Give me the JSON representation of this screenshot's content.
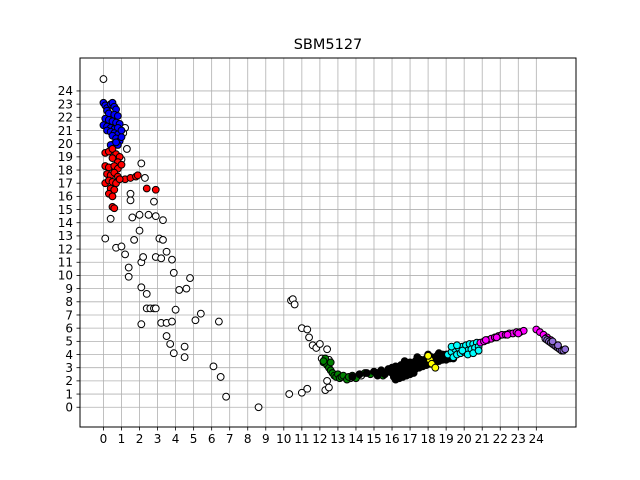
{
  "chart_data": {
    "type": "scatter",
    "title": "SBM5127",
    "xlabel": "",
    "ylabel": "",
    "xlim": [
      -1.3,
      26.2
    ],
    "ylim": [
      -1.5,
      26.5
    ],
    "xticks": [
      0,
      1,
      2,
      3,
      4,
      5,
      6,
      7,
      8,
      9,
      10,
      11,
      12,
      13,
      14,
      15,
      16,
      17,
      18,
      19,
      20,
      21,
      22,
      23,
      24
    ],
    "yticks": [
      0,
      1,
      2,
      3,
      4,
      5,
      6,
      7,
      8,
      9,
      10,
      11,
      12,
      13,
      14,
      15,
      16,
      17,
      18,
      19,
      20,
      21,
      22,
      23,
      24
    ],
    "grid": true,
    "marker_edge_color": "#000000",
    "series": [
      {
        "color": "#ffffff",
        "points": [
          [
            0,
            24.9
          ],
          [
            0.1,
            12.8
          ],
          [
            0.4,
            14.3
          ],
          [
            0.7,
            12.1
          ],
          [
            1.0,
            12.2
          ],
          [
            1.2,
            11.6
          ],
          [
            1.4,
            10.6
          ],
          [
            1.4,
            9.9
          ],
          [
            1.2,
            21.2
          ],
          [
            1.1,
            20.8
          ],
          [
            1.3,
            19.6
          ],
          [
            1.0,
            18.8
          ],
          [
            2.1,
            18.5
          ],
          [
            2.3,
            17.4
          ],
          [
            1.5,
            16.2
          ],
          [
            1.5,
            15.7
          ],
          [
            2.8,
            15.6
          ],
          [
            1.6,
            14.4
          ],
          [
            2.0,
            14.6
          ],
          [
            2.5,
            14.6
          ],
          [
            2.9,
            14.5
          ],
          [
            3.3,
            14.2
          ],
          [
            2.0,
            13.4
          ],
          [
            1.7,
            12.7
          ],
          [
            2.1,
            11.0
          ],
          [
            2.2,
            11.4
          ],
          [
            2.9,
            11.4
          ],
          [
            3.1,
            12.8
          ],
          [
            3.3,
            12.7
          ],
          [
            3.2,
            11.3
          ],
          [
            3.5,
            11.8
          ],
          [
            3.8,
            11.2
          ],
          [
            3.9,
            10.2
          ],
          [
            2.1,
            9.1
          ],
          [
            2.4,
            8.6
          ],
          [
            4.8,
            9.8
          ],
          [
            4.2,
            8.9
          ],
          [
            4.6,
            9.0
          ],
          [
            2.4,
            7.5
          ],
          [
            2.6,
            7.5
          ],
          [
            2.8,
            7.5
          ],
          [
            2.9,
            7.5
          ],
          [
            4.0,
            7.4
          ],
          [
            2.1,
            6.3
          ],
          [
            3.2,
            6.4
          ],
          [
            3.5,
            6.4
          ],
          [
            3.8,
            6.5
          ],
          [
            5.1,
            6.6
          ],
          [
            5.4,
            7.1
          ],
          [
            6.4,
            6.5
          ],
          [
            3.5,
            5.4
          ],
          [
            3.7,
            4.8
          ],
          [
            3.9,
            4.1
          ],
          [
            4.5,
            4.6
          ],
          [
            4.5,
            3.8
          ],
          [
            6.1,
            3.1
          ],
          [
            6.5,
            2.3
          ],
          [
            6.8,
            0.8
          ],
          [
            8.6,
            0
          ],
          [
            10.4,
            8.1
          ],
          [
            10.5,
            8.2
          ],
          [
            10.6,
            7.8
          ],
          [
            11.0,
            6.0
          ],
          [
            11.3,
            5.9
          ],
          [
            11.4,
            5.3
          ],
          [
            11.6,
            4.7
          ],
          [
            11.8,
            4.5
          ],
          [
            12.0,
            4.8
          ],
          [
            12.1,
            3.7
          ],
          [
            12.4,
            4.4
          ],
          [
            12.5,
            3.6
          ],
          [
            12.3,
            1.3
          ],
          [
            12.4,
            2.0
          ],
          [
            12.5,
            1.5
          ],
          [
            10.3,
            1.0
          ],
          [
            11.0,
            1.1
          ],
          [
            11.3,
            1.4
          ],
          [
            13.7,
            2.2
          ],
          [
            14.3,
            2.4
          ]
        ]
      },
      {
        "color": "#0000ff",
        "points": [
          [
            0,
            23.1
          ],
          [
            0.1,
            22.9
          ],
          [
            0.2,
            22.7
          ],
          [
            0.4,
            23.0
          ],
          [
            0.5,
            23.1
          ],
          [
            0.6,
            22.8
          ],
          [
            0.7,
            22.6
          ],
          [
            0.2,
            22.5
          ],
          [
            0.3,
            22.3
          ],
          [
            0.6,
            22.2
          ],
          [
            0.8,
            22.1
          ],
          [
            0.1,
            21.9
          ],
          [
            0.3,
            21.8
          ],
          [
            0.5,
            21.7
          ],
          [
            0.7,
            21.6
          ],
          [
            0.9,
            21.5
          ],
          [
            0,
            21.4
          ],
          [
            0.2,
            21.3
          ],
          [
            0.4,
            21.2
          ],
          [
            0.6,
            21.1
          ],
          [
            0.8,
            21.2
          ],
          [
            0.2,
            21.0
          ],
          [
            0.4,
            20.9
          ],
          [
            0.6,
            20.8
          ],
          [
            0.8,
            20.7
          ],
          [
            0.5,
            20.6
          ],
          [
            0.7,
            20.4
          ],
          [
            0.9,
            20.2
          ],
          [
            0.6,
            20.0
          ],
          [
            0.8,
            19.9
          ],
          [
            0.4,
            19.9
          ],
          [
            1.0,
            20.5
          ],
          [
            1.0,
            21.0
          ],
          [
            0.7,
            20.1
          ]
        ]
      },
      {
        "color": "#ff0000",
        "points": [
          [
            0.1,
            19.3
          ],
          [
            0.3,
            19.4
          ],
          [
            0.5,
            19.6
          ],
          [
            0.7,
            19.2
          ],
          [
            0.9,
            19.0
          ],
          [
            0.5,
            18.9
          ],
          [
            0.8,
            18.6
          ],
          [
            0.1,
            18.3
          ],
          [
            0.3,
            18.2
          ],
          [
            0.6,
            18.3
          ],
          [
            0.8,
            18.1
          ],
          [
            1.0,
            18.4
          ],
          [
            0.2,
            17.7
          ],
          [
            0.4,
            17.6
          ],
          [
            0.6,
            17.8
          ],
          [
            0.8,
            17.5
          ],
          [
            0.1,
            17.0
          ],
          [
            0.3,
            17.2
          ],
          [
            0.5,
            17.1
          ],
          [
            0.7,
            17.0
          ],
          [
            0.4,
            16.6
          ],
          [
            0.6,
            16.5
          ],
          [
            0.3,
            16.2
          ],
          [
            0.5,
            16.0
          ],
          [
            0.5,
            15.2
          ],
          [
            0.6,
            15.1
          ],
          [
            1.2,
            17.3
          ],
          [
            1.5,
            17.4
          ],
          [
            1.8,
            17.5
          ],
          [
            1.9,
            17.6
          ],
          [
            2.4,
            16.6
          ],
          [
            2.9,
            16.5
          ],
          [
            0.9,
            17.3
          ]
        ]
      },
      {
        "color": "#008000",
        "points": [
          [
            12.2,
            3.4
          ],
          [
            12.3,
            3.7
          ],
          [
            12.4,
            3.2
          ],
          [
            12.5,
            3.0
          ],
          [
            12.6,
            2.8
          ],
          [
            12.7,
            2.6
          ],
          [
            12.8,
            2.4
          ],
          [
            12.9,
            2.3
          ],
          [
            13.0,
            2.5
          ],
          [
            13.1,
            2.2
          ],
          [
            13.2,
            2.3
          ],
          [
            13.3,
            2.4
          ],
          [
            13.5,
            2.1
          ],
          [
            13.6,
            2.3
          ],
          [
            13.8,
            2.4
          ],
          [
            14.0,
            2.2
          ],
          [
            14.2,
            2.5
          ],
          [
            14.5,
            2.6
          ],
          [
            14.8,
            2.5
          ],
          [
            15.2,
            2.6
          ],
          [
            15.5,
            2.4
          ],
          [
            12.6,
            3.4
          ],
          [
            12.2,
            3.5
          ]
        ]
      },
      {
        "color": "#000000",
        "points": [
          [
            13.8,
            2.3
          ],
          [
            14.2,
            2.5
          ],
          [
            14.6,
            2.6
          ],
          [
            15.0,
            2.7
          ],
          [
            15.4,
            2.8
          ],
          [
            15.8,
            2.9
          ],
          [
            16.0,
            3.0
          ],
          [
            16.2,
            3.1
          ],
          [
            16.5,
            3.2
          ],
          [
            16.8,
            3.3
          ],
          [
            17.0,
            3.4
          ],
          [
            17.3,
            3.5
          ],
          [
            17.6,
            3.6
          ],
          [
            17.9,
            3.7
          ],
          [
            18.2,
            3.8
          ],
          [
            18.5,
            3.9
          ],
          [
            18.8,
            4.0
          ],
          [
            19.0,
            4.0
          ],
          [
            16.0,
            2.6
          ],
          [
            16.2,
            2.7
          ],
          [
            16.4,
            2.8
          ],
          [
            16.6,
            2.9
          ],
          [
            16.8,
            3.0
          ],
          [
            17.0,
            3.1
          ],
          [
            17.2,
            3.2
          ],
          [
            17.4,
            3.3
          ],
          [
            17.6,
            3.4
          ],
          [
            17.8,
            3.5
          ],
          [
            18.0,
            3.6
          ],
          [
            18.2,
            3.5
          ],
          [
            18.4,
            3.4
          ],
          [
            18.6,
            3.5
          ],
          [
            18.8,
            3.6
          ],
          [
            19.0,
            3.6
          ],
          [
            19.2,
            3.7
          ],
          [
            19.4,
            3.7
          ],
          [
            16.1,
            2.3
          ],
          [
            16.3,
            2.4
          ],
          [
            16.5,
            2.5
          ],
          [
            16.7,
            2.6
          ],
          [
            16.9,
            2.7
          ],
          [
            17.1,
            2.8
          ],
          [
            17.3,
            2.9
          ],
          [
            17.5,
            3.0
          ],
          [
            17.7,
            3.1
          ],
          [
            17.9,
            3.2
          ],
          [
            18.1,
            3.3
          ],
          [
            16.2,
            2.1
          ],
          [
            16.4,
            2.2
          ],
          [
            16.6,
            2.3
          ],
          [
            16.8,
            2.4
          ],
          [
            17.0,
            2.5
          ],
          [
            17.2,
            2.6
          ],
          [
            15.6,
            2.5
          ],
          [
            15.8,
            2.7
          ],
          [
            15.2,
            2.4
          ],
          [
            16.7,
            3.5
          ],
          [
            17.4,
            3.8
          ],
          [
            18.0,
            4.0
          ],
          [
            18.6,
            4.1
          ]
        ]
      },
      {
        "color": "#ffff00",
        "points": [
          [
            18.1,
            3.6
          ],
          [
            18.2,
            3.3
          ],
          [
            18.4,
            3.0
          ],
          [
            18.0,
            3.9
          ]
        ]
      },
      {
        "color": "#00ffff",
        "points": [
          [
            19.1,
            4.0
          ],
          [
            19.3,
            4.2
          ],
          [
            19.5,
            4.4
          ],
          [
            19.7,
            4.5
          ],
          [
            19.9,
            4.6
          ],
          [
            20.1,
            4.7
          ],
          [
            20.3,
            4.8
          ],
          [
            20.5,
            4.8
          ],
          [
            20.7,
            4.9
          ],
          [
            19.4,
            3.8
          ],
          [
            19.6,
            4.0
          ],
          [
            19.8,
            4.1
          ],
          [
            20.0,
            4.2
          ],
          [
            20.2,
            4.3
          ],
          [
            20.4,
            4.4
          ],
          [
            20.6,
            4.5
          ],
          [
            20.8,
            4.6
          ],
          [
            19.3,
            4.6
          ],
          [
            19.6,
            4.7
          ],
          [
            19.9,
            4.3
          ],
          [
            20.2,
            4.0
          ],
          [
            20.5,
            4.1
          ],
          [
            20.8,
            4.3
          ]
        ]
      },
      {
        "color": "#ff00ff",
        "points": [
          [
            20.9,
            4.9
          ],
          [
            21.1,
            5.0
          ],
          [
            21.3,
            5.1
          ],
          [
            21.5,
            5.2
          ],
          [
            21.7,
            5.3
          ],
          [
            21.9,
            5.4
          ],
          [
            22.1,
            5.5
          ],
          [
            22.3,
            5.5
          ],
          [
            22.5,
            5.6
          ],
          [
            22.7,
            5.6
          ],
          [
            22.9,
            5.7
          ],
          [
            23.1,
            5.7
          ],
          [
            23.3,
            5.8
          ],
          [
            21.2,
            5.1
          ],
          [
            21.8,
            5.3
          ],
          [
            22.4,
            5.5
          ],
          [
            23.0,
            5.6
          ],
          [
            24.0,
            5.9
          ],
          [
            24.2,
            5.7
          ],
          [
            24.4,
            5.5
          ],
          [
            24.6,
            5.3
          ],
          [
            24.8,
            5.1
          ]
        ]
      },
      {
        "color": "#9370db",
        "points": [
          [
            24.5,
            5.2
          ],
          [
            24.6,
            5.1
          ],
          [
            24.7,
            5.0
          ],
          [
            24.8,
            4.9
          ],
          [
            24.9,
            4.8
          ],
          [
            25.0,
            4.7
          ],
          [
            25.1,
            4.6
          ],
          [
            25.2,
            4.5
          ],
          [
            25.3,
            4.4
          ],
          [
            25.4,
            4.3
          ],
          [
            25.5,
            4.3
          ],
          [
            25.6,
            4.4
          ],
          [
            24.9,
            5.0
          ],
          [
            25.2,
            4.7
          ]
        ]
      }
    ]
  }
}
